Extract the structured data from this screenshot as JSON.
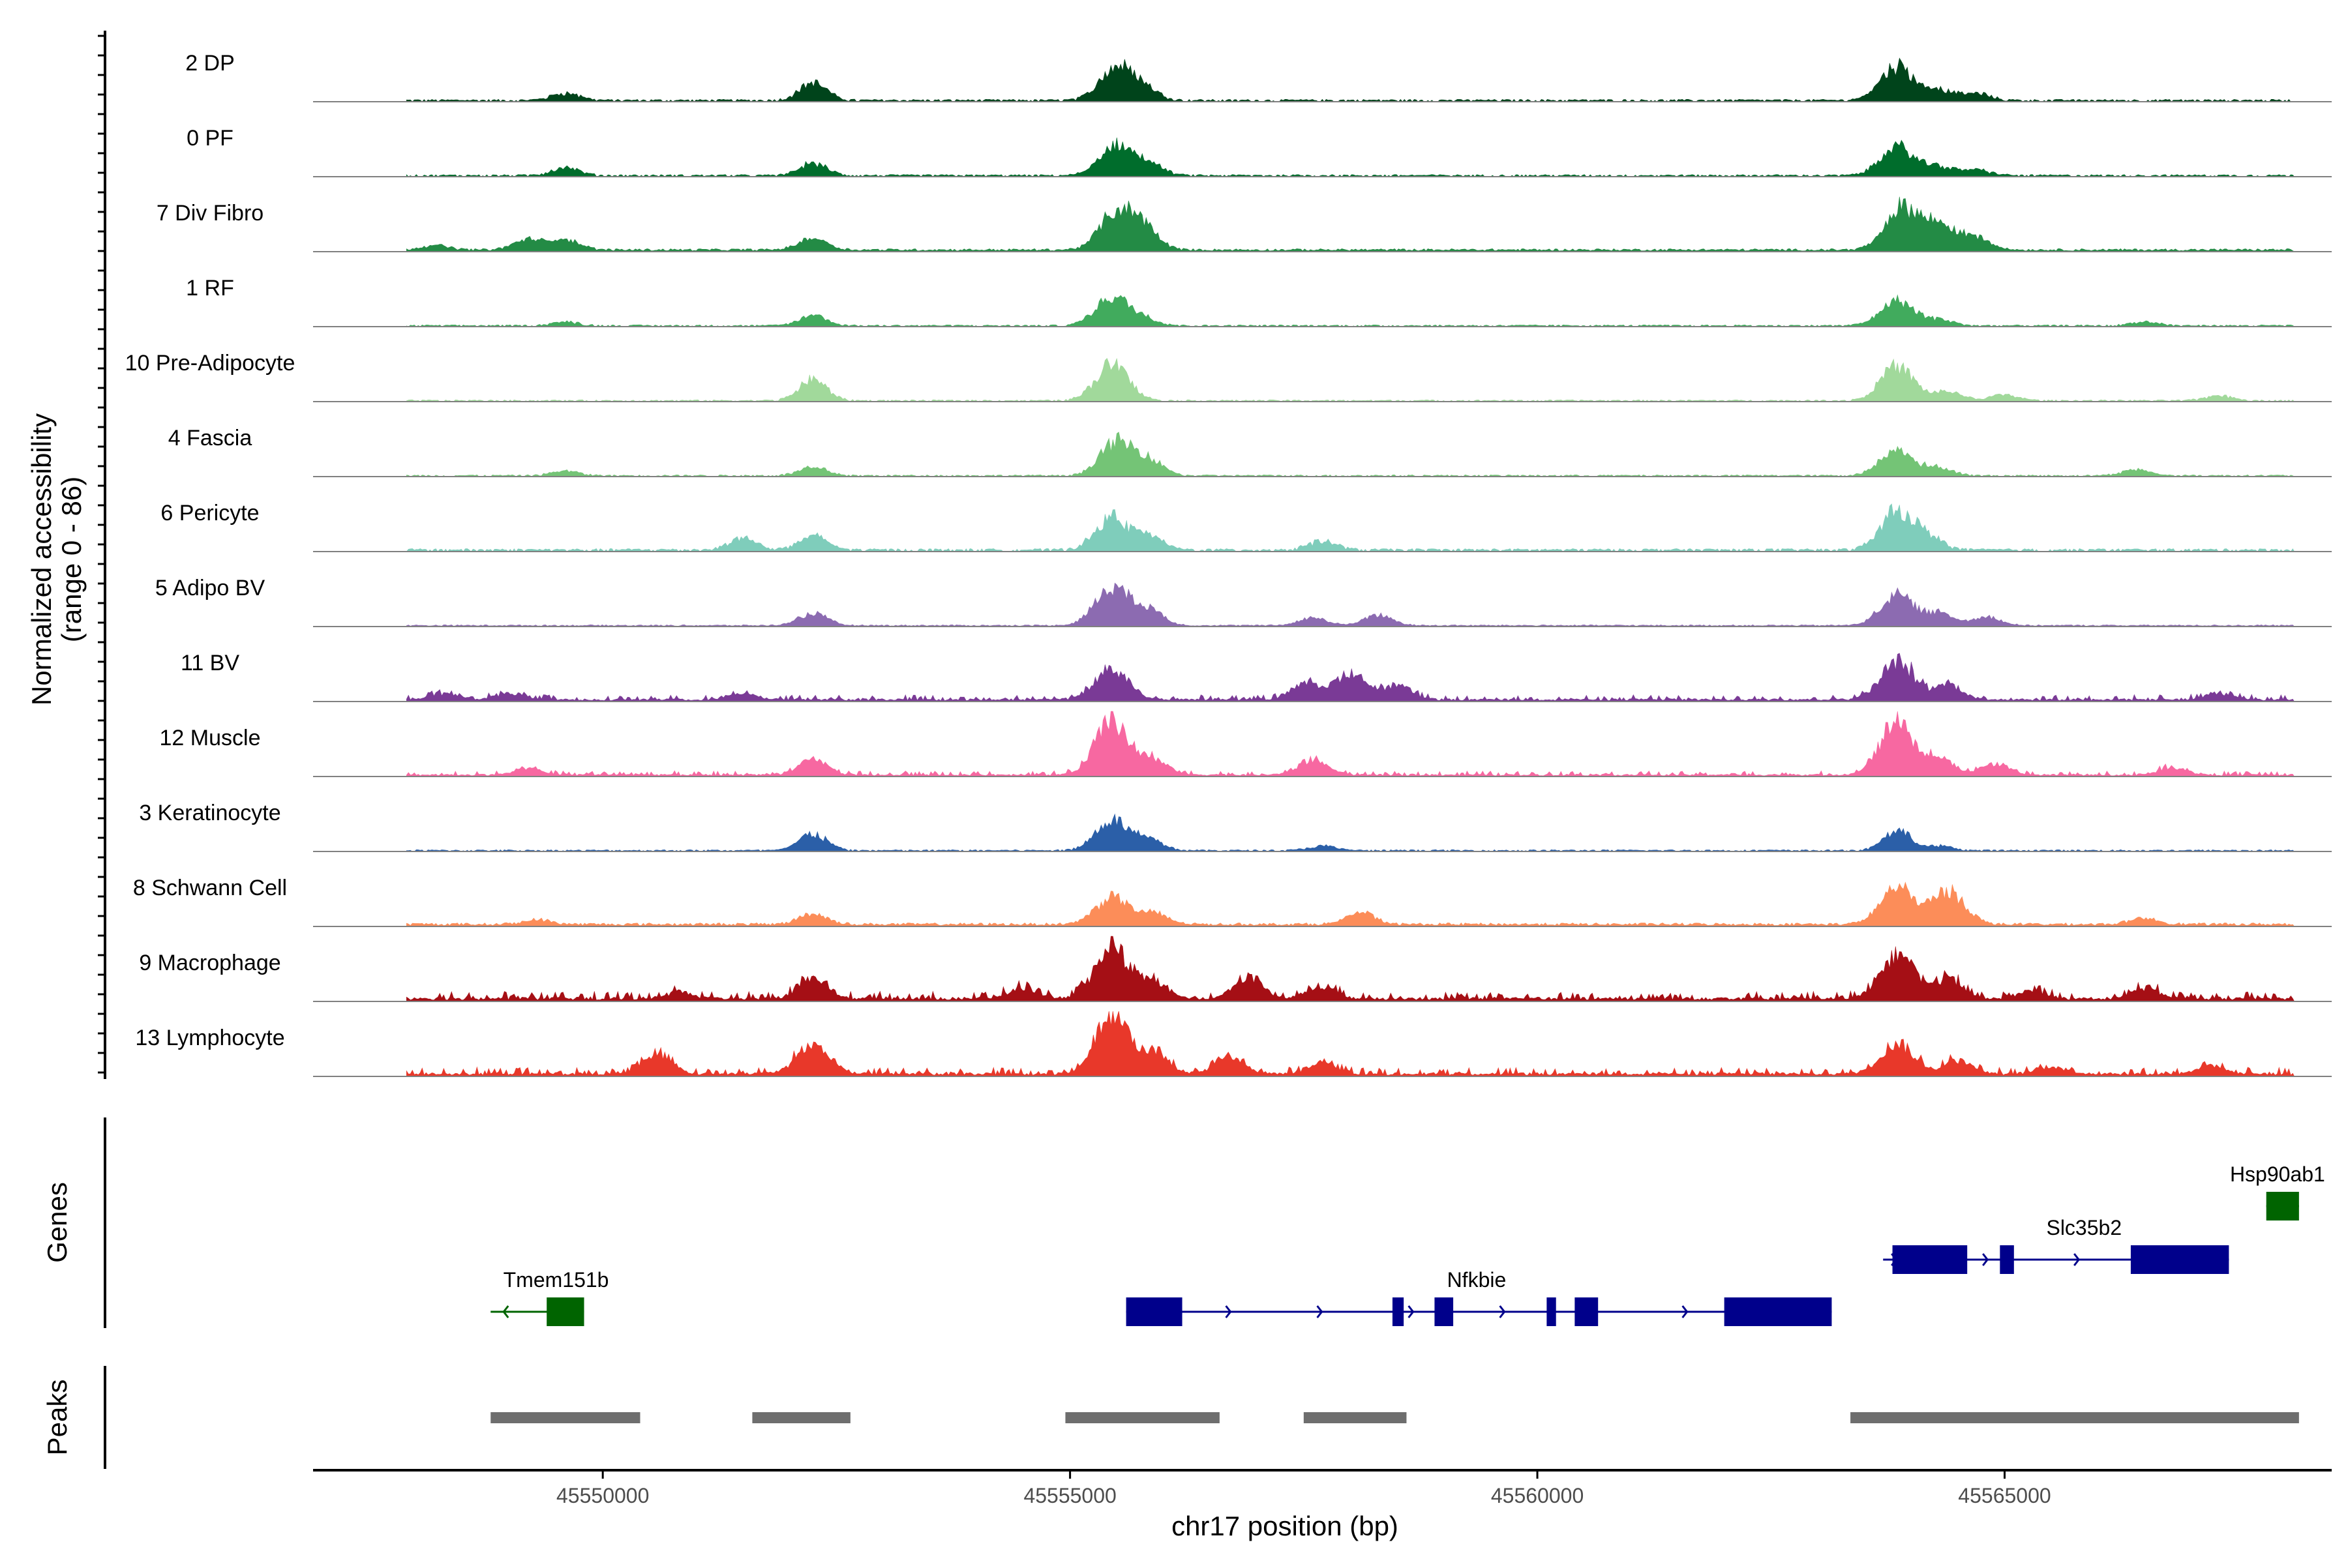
{
  "chart_data": {
    "type": "area",
    "title": "",
    "ylabel_line1": "Normalized accessibility",
    "ylabel_line2": "(range 0 - 86)",
    "xlabel": "chr17 position (bp)",
    "yrange": [
      0,
      86
    ],
    "xlim": [
      45546900,
      45568500
    ],
    "xticks": [
      {
        "value": 45550000,
        "label": "45550000"
      },
      {
        "value": 45555000,
        "label": "45555000"
      },
      {
        "value": 45560000,
        "label": "45560000"
      },
      {
        "value": 45565000,
        "label": "45565000"
      }
    ],
    "track_start": 45547900,
    "track_end": 45568100,
    "tracks": [
      {
        "name": "2 DP",
        "color": "#00441b",
        "peaks": [
          [
            45549600,
            10
          ],
          [
            45552250,
            23
          ],
          [
            45555500,
            44
          ],
          [
            45555800,
            14
          ],
          [
            45563850,
            46
          ],
          [
            45564300,
            14
          ],
          [
            45564700,
            9
          ]
        ],
        "base": 2.0,
        "spread": 0.5
      },
      {
        "name": "0 PF",
        "color": "#006d2c",
        "peaks": [
          [
            45549600,
            10
          ],
          [
            45552250,
            16
          ],
          [
            45555500,
            40
          ],
          [
            45555850,
            14
          ],
          [
            45563850,
            38
          ],
          [
            45564300,
            12
          ],
          [
            45564700,
            8
          ]
        ],
        "base": 1.8,
        "spread": 0.5
      },
      {
        "name": "7 Div Fibro",
        "color": "#238b45",
        "peaks": [
          [
            45548200,
            6
          ],
          [
            45549200,
            14
          ],
          [
            45549600,
            14
          ],
          [
            45552250,
            16
          ],
          [
            45555500,
            50
          ],
          [
            45555800,
            28
          ],
          [
            45563900,
            55
          ],
          [
            45564300,
            33
          ],
          [
            45564700,
            16
          ]
        ],
        "base": 2.5,
        "spread": 0.7
      },
      {
        "name": "1 RF",
        "color": "#41ab5d",
        "peaks": [
          [
            45549600,
            5
          ],
          [
            45552250,
            13
          ],
          [
            45555450,
            38
          ],
          [
            45555800,
            9
          ],
          [
            45563850,
            33
          ],
          [
            45564300,
            8
          ],
          [
            45566500,
            5
          ]
        ],
        "base": 1.5,
        "spread": 0.5
      },
      {
        "name": "10 Pre-Adipocyte",
        "color": "#a1d99b",
        "peaks": [
          [
            45552250,
            28
          ],
          [
            45555450,
            48
          ],
          [
            45563850,
            45
          ],
          [
            45564400,
            12
          ],
          [
            45565000,
            8
          ],
          [
            45567300,
            7
          ]
        ],
        "base": 1.5,
        "spread": 0.5
      },
      {
        "name": "4 Fascia",
        "color": "#74c476",
        "peaks": [
          [
            45549600,
            6
          ],
          [
            45552250,
            12
          ],
          [
            45555500,
            44
          ],
          [
            45555850,
            20
          ],
          [
            45563850,
            34
          ],
          [
            45564300,
            10
          ],
          [
            45566400,
            8
          ]
        ],
        "base": 1.5,
        "spread": 0.5
      },
      {
        "name": "6 Pericyte",
        "color": "#7fcdbb",
        "peaks": [
          [
            45551500,
            16
          ],
          [
            45552250,
            18
          ],
          [
            45555450,
            42
          ],
          [
            45555850,
            18
          ],
          [
            45557700,
            12
          ],
          [
            45563850,
            50
          ],
          [
            45564200,
            16
          ]
        ],
        "base": 2.5,
        "spread": 0.5
      },
      {
        "name": "5 Adipo BV",
        "color": "#8c6bb1",
        "peaks": [
          [
            45552250,
            16
          ],
          [
            45555450,
            52
          ],
          [
            45555850,
            20
          ],
          [
            45557600,
            10
          ],
          [
            45558300,
            14
          ],
          [
            45563850,
            40
          ],
          [
            45564300,
            16
          ],
          [
            45564800,
            12
          ]
        ],
        "base": 1.5,
        "spread": 0.6
      },
      {
        "name": "11 BV",
        "color": "#7a3a96",
        "peaks": [
          [
            45548300,
            8
          ],
          [
            45549000,
            8
          ],
          [
            45551500,
            8
          ],
          [
            45555450,
            40
          ],
          [
            45557500,
            20
          ],
          [
            45558000,
            35
          ],
          [
            45558500,
            18
          ],
          [
            45563850,
            50
          ],
          [
            45564400,
            20
          ],
          [
            45567300,
            8
          ]
        ],
        "base": 3.0,
        "spread": 0.9
      },
      {
        "name": "12 Muscle",
        "color": "#f768a1",
        "peaks": [
          [
            45549200,
            8
          ],
          [
            45552250,
            20
          ],
          [
            45555450,
            72
          ],
          [
            45555900,
            18
          ],
          [
            45557600,
            20
          ],
          [
            45563850,
            70
          ],
          [
            45564300,
            20
          ],
          [
            45564900,
            14
          ],
          [
            45566800,
            10
          ]
        ],
        "base": 2.5,
        "spread": 0.8
      },
      {
        "name": "3 Keratinocyte",
        "color": "#2b5fa8",
        "peaks": [
          [
            45552250,
            22
          ],
          [
            45555450,
            40
          ],
          [
            45555850,
            14
          ],
          [
            45557700,
            6
          ],
          [
            45563850,
            26
          ],
          [
            45564300,
            6
          ]
        ],
        "base": 1.5,
        "spread": 0.4
      },
      {
        "name": "8 Schwann Cell",
        "color": "#fc8d59",
        "peaks": [
          [
            45549300,
            6
          ],
          [
            45552250,
            14
          ],
          [
            45555450,
            36
          ],
          [
            45555900,
            14
          ],
          [
            45558100,
            16
          ],
          [
            45563850,
            48
          ],
          [
            45564400,
            44
          ],
          [
            45566500,
            8
          ]
        ],
        "base": 3.0,
        "spread": 0.6
      },
      {
        "name": "9 Macrophage",
        "color": "#a50f15",
        "peaks": [
          [
            45550800,
            8
          ],
          [
            45552250,
            28
          ],
          [
            45554500,
            14
          ],
          [
            45555450,
            70
          ],
          [
            45555900,
            20
          ],
          [
            45556900,
            28
          ],
          [
            45557700,
            16
          ],
          [
            45563850,
            60
          ],
          [
            45564400,
            26
          ],
          [
            45565300,
            10
          ],
          [
            45566500,
            14
          ]
        ],
        "base": 4.5,
        "spread": 1.0
      },
      {
        "name": "13 Lymphocyte",
        "color": "#e8382a",
        "peaks": [
          [
            45550600,
            28
          ],
          [
            45552250,
            38
          ],
          [
            45555450,
            76
          ],
          [
            45555900,
            28
          ],
          [
            45556700,
            24
          ],
          [
            45557700,
            14
          ],
          [
            45563850,
            40
          ],
          [
            45564500,
            18
          ],
          [
            45565500,
            10
          ],
          [
            45567200,
            10
          ]
        ],
        "base": 4.0,
        "spread": 0.9
      }
    ],
    "genes_label": "Genes",
    "genes": [
      {
        "name": "Tmem151b",
        "strand": "-",
        "color": "#006400",
        "row": 2,
        "start": 45548800,
        "end": 45549800,
        "exons": [
          [
            45549400,
            45549800
          ]
        ],
        "label_at": 45549500
      },
      {
        "name": "Nfkbie",
        "strand": "+",
        "color": "#00008b",
        "row": 2,
        "start": 45555600,
        "end": 45563150,
        "exons": [
          [
            45555600,
            45556200
          ],
          [
            45558450,
            45558570
          ],
          [
            45558900,
            45559100
          ],
          [
            45560100,
            45560200
          ],
          [
            45560400,
            45560650
          ],
          [
            45562000,
            45563150
          ]
        ],
        "label_at": 45559350
      },
      {
        "name": "Slc35b2",
        "strand": "+",
        "color": "#00008b",
        "row": 1,
        "start": 45563700,
        "end": 45567400,
        "exons": [
          [
            45563800,
            45564600
          ],
          [
            45564950,
            45565100
          ],
          [
            45566350,
            45567400
          ]
        ],
        "label_at": 45565850
      },
      {
        "name": "Hsp90ab1",
        "strand": "+",
        "color": "#006400",
        "row": 0,
        "start": 45567800,
        "end": 45568150,
        "exons": [
          [
            45567800,
            45568150
          ]
        ],
        "label_at": 45567920
      }
    ],
    "peaks_label": "Peaks",
    "peak_regions": [
      [
        45548800,
        45550400
      ],
      [
        45551600,
        45552650
      ],
      [
        45554950,
        45556600
      ],
      [
        45557500,
        45558600
      ],
      [
        45563350,
        45568150
      ]
    ]
  }
}
